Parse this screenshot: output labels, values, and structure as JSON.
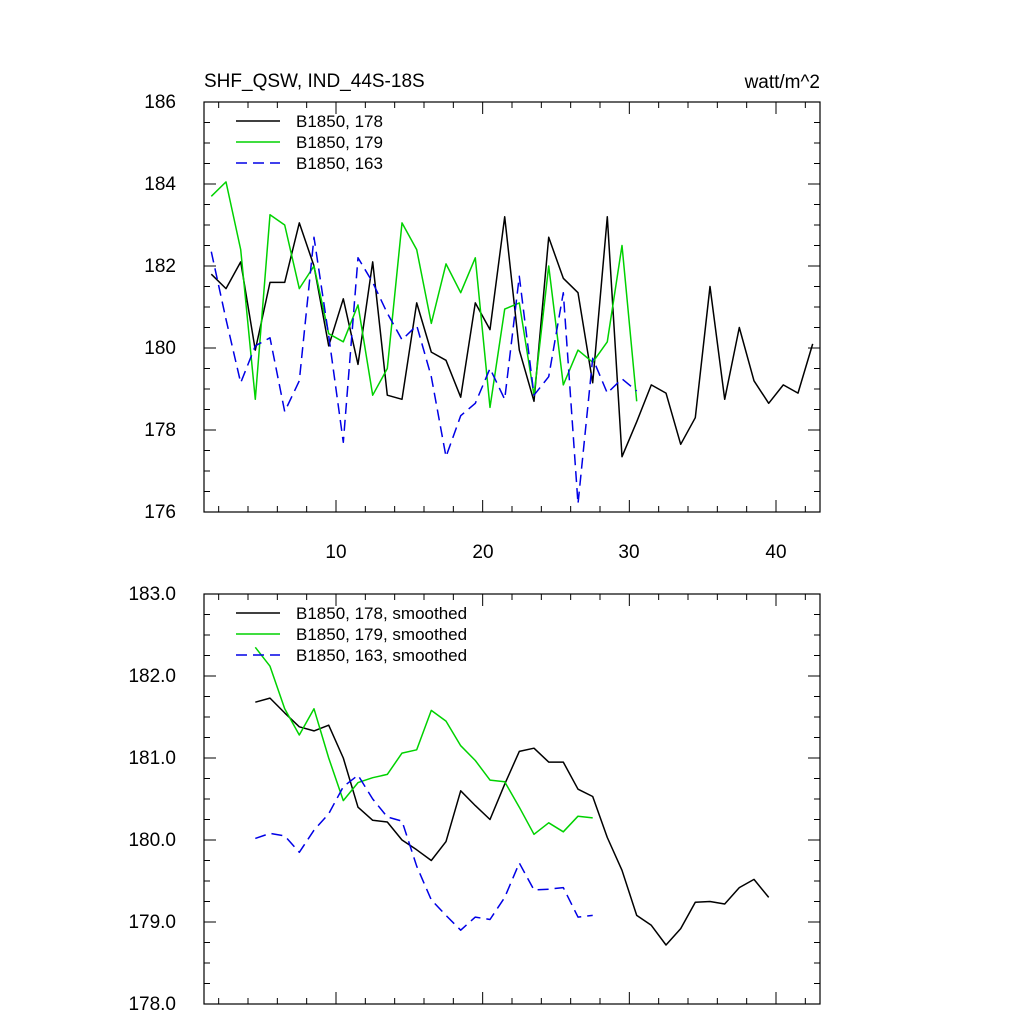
{
  "chart_data": [
    {
      "type": "line",
      "title": "SHF_QSW, IND_44S-18S",
      "units": "watt/m^2",
      "xlabel": "",
      "ylabel": "",
      "xlim": [
        1,
        43
      ],
      "ylim": [
        176,
        186
      ],
      "x_ticks": [
        10,
        20,
        30,
        40
      ],
      "x_tick_labels": [
        "10",
        "20",
        "30",
        "40"
      ],
      "y_ticks": [
        176,
        178,
        180,
        182,
        184,
        186
      ],
      "y_tick_labels": [
        "176",
        "178",
        "180",
        "182",
        "184",
        "186"
      ],
      "legend_position": "top-left",
      "series": [
        {
          "name": "B1850, 178",
          "color": "#000000",
          "dash": "solid",
          "x_start": 1.5,
          "values": [
            181.8,
            181.45,
            182.1,
            179.95,
            181.6,
            181.6,
            183.05,
            182.0,
            180.05,
            181.2,
            179.6,
            182.1,
            178.85,
            178.75,
            181.1,
            179.9,
            179.7,
            178.8,
            181.1,
            180.45,
            183.2,
            179.95,
            178.7,
            182.7,
            181.7,
            181.35,
            179.15,
            183.2,
            177.35,
            178.2,
            179.1,
            178.9,
            177.65,
            178.3,
            181.5,
            178.75,
            180.5,
            179.2,
            178.65,
            179.1,
            178.9,
            180.1
          ]
        },
        {
          "name": "B1850, 179",
          "color": "#00d200",
          "dash": "solid",
          "x_start": 1.5,
          "values": [
            183.7,
            184.05,
            182.4,
            178.75,
            183.25,
            183.0,
            181.45,
            182.0,
            180.35,
            180.15,
            181.05,
            178.85,
            179.5,
            183.05,
            182.4,
            180.6,
            182.05,
            181.35,
            182.2,
            178.55,
            180.95,
            181.1,
            178.85,
            182.0,
            179.1,
            179.95,
            179.65,
            180.15,
            182.5,
            178.7
          ]
        },
        {
          "name": "B1850, 163",
          "color": "#0000e6",
          "dash": "dashed",
          "x_start": 1.5,
          "values": [
            182.35,
            180.7,
            179.15,
            180.05,
            180.25,
            178.45,
            179.2,
            182.7,
            180.3,
            177.7,
            182.2,
            181.6,
            180.85,
            180.2,
            180.55,
            179.3,
            177.35,
            178.35,
            178.65,
            179.5,
            178.75,
            181.75,
            178.85,
            179.3,
            181.35,
            176.2,
            179.75,
            178.9,
            179.25,
            178.95
          ]
        }
      ]
    },
    {
      "type": "line",
      "title": "",
      "xlabel": "",
      "ylabel": "",
      "xlim": [
        1,
        43
      ],
      "ylim": [
        178.0,
        183.0
      ],
      "x_ticks": [
        10,
        20,
        30,
        40
      ],
      "x_tick_labels": [],
      "y_ticks": [
        178.0,
        179.0,
        180.0,
        181.0,
        182.0,
        183.0
      ],
      "y_tick_labels": [
        "178.0",
        "179.0",
        "180.0",
        "181.0",
        "182.0",
        "183.0"
      ],
      "legend_position": "top-left",
      "series": [
        {
          "name": "B1850, 178, smoothed",
          "color": "#000000",
          "dash": "solid",
          "x_start": 4.5,
          "values": [
            181.68,
            181.73,
            181.55,
            181.38,
            181.33,
            181.4,
            181.0,
            180.4,
            180.24,
            180.22,
            180.0,
            179.88,
            179.75,
            179.98,
            180.6,
            180.42,
            180.25,
            180.68,
            181.08,
            181.12,
            180.95,
            180.95,
            180.62,
            180.53,
            180.03,
            179.63,
            179.08,
            178.96,
            178.72,
            178.92,
            179.24,
            179.25,
            179.22,
            179.42,
            179.52,
            179.3
          ]
        },
        {
          "name": "B1850, 179, smoothed",
          "color": "#00d200",
          "dash": "solid",
          "x_start": 4.5,
          "values": [
            182.35,
            182.12,
            181.6,
            181.28,
            181.6,
            181.0,
            180.48,
            180.7,
            180.76,
            180.8,
            181.06,
            181.1,
            181.58,
            181.45,
            181.15,
            180.97,
            180.73,
            180.71,
            180.4,
            180.07,
            180.21,
            180.1,
            180.29,
            180.27
          ]
        },
        {
          "name": "B1850, 163, smoothed",
          "color": "#0000e6",
          "dash": "dashed",
          "x_start": 4.5,
          "values": [
            180.02,
            180.08,
            180.05,
            179.85,
            180.12,
            180.32,
            180.65,
            180.79,
            180.5,
            180.28,
            180.23,
            179.68,
            179.27,
            179.08,
            178.9,
            179.06,
            179.03,
            179.3,
            179.72,
            179.39,
            179.4,
            179.42,
            179.06,
            179.08
          ]
        }
      ]
    }
  ]
}
